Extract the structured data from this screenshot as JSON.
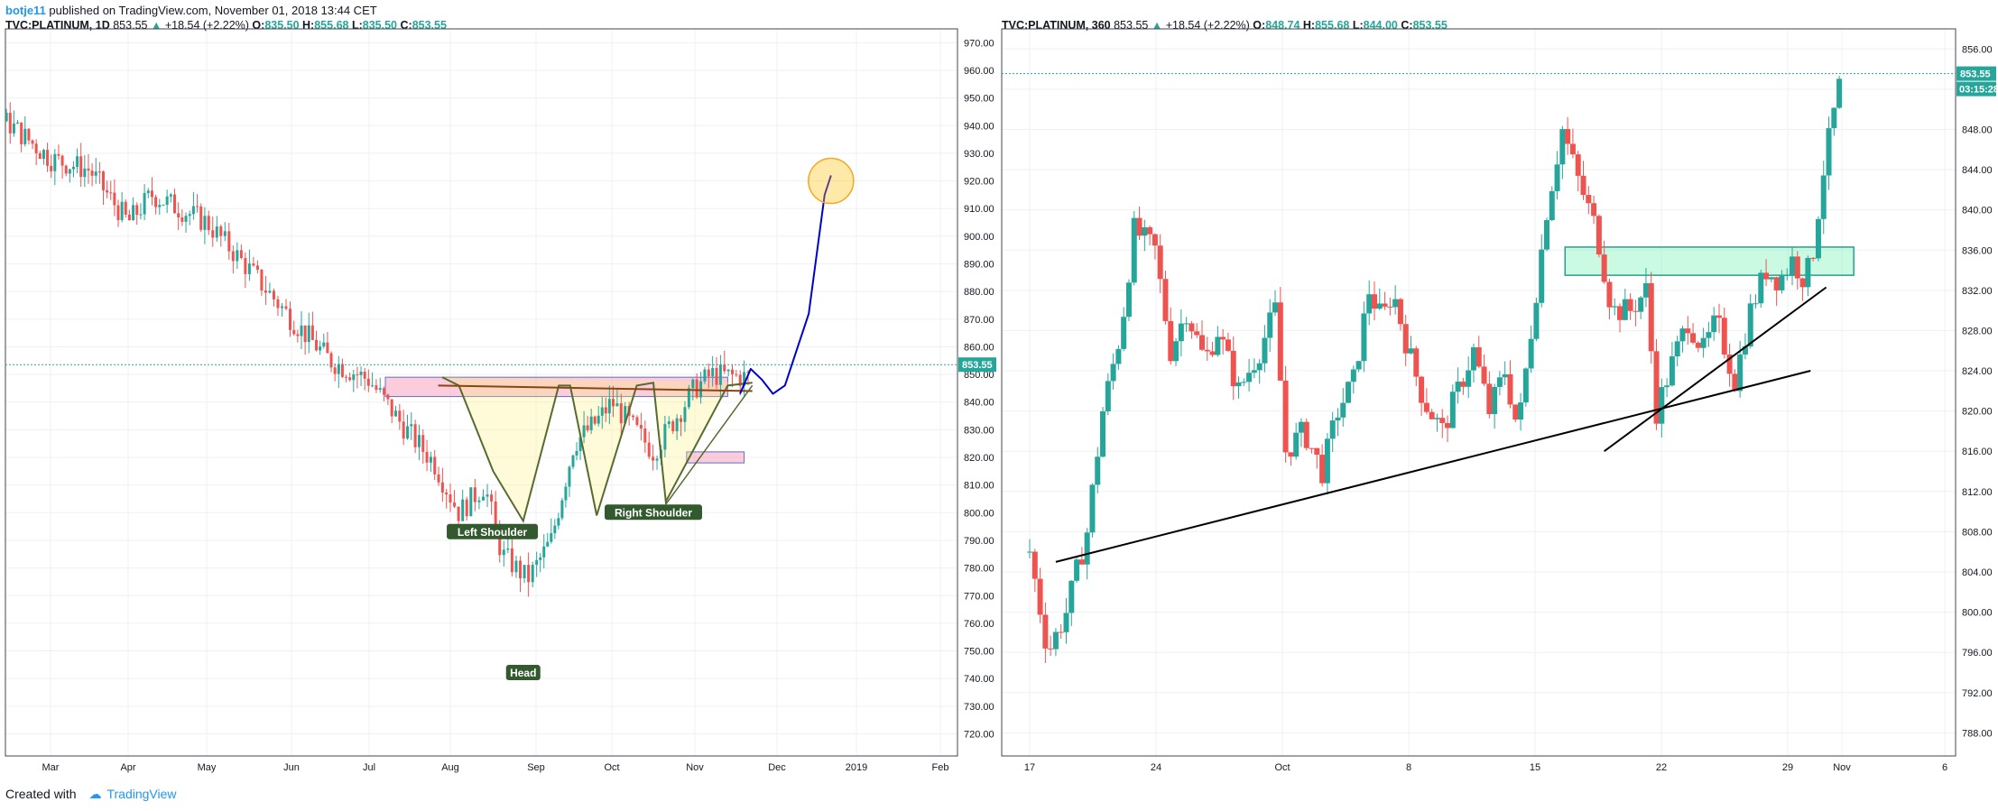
{
  "header": {
    "user": "botje11",
    "published_text": "published on TradingView.com, November 01, 2018 13:44 CET"
  },
  "footer": {
    "created_with": "Created with",
    "brand": "TradingView"
  },
  "colors": {
    "up": "#26a69a",
    "down": "#ef5350",
    "projection": "#0000cc",
    "grid": "#eef0f3"
  },
  "chart_data": [
    {
      "type": "candlestick",
      "symbol": "TVC:PLATINUM, 1D",
      "ohlc_legend": {
        "last": "853.55",
        "change": "+18.54 (+2.22%)",
        "O": "835.50",
        "H": "855.68",
        "L": "835.50",
        "C": "853.55"
      },
      "xlabels": [
        "Mar",
        "Apr",
        "May",
        "Jun",
        "Jul",
        "Aug",
        "Sep",
        "Oct",
        "Nov",
        "Dec",
        "2019",
        "Feb"
      ],
      "ylim": [
        712,
        975
      ],
      "yticks": [
        720,
        730,
        740,
        750,
        760,
        770,
        780,
        790,
        800,
        810,
        820,
        830,
        840,
        850,
        860,
        870,
        880,
        890,
        900,
        910,
        920,
        930,
        940,
        950,
        960,
        970
      ],
      "last_price_label": "853.55",
      "price_path": [
        [
          -0.3,
          975
        ],
        [
          0,
          970
        ],
        [
          0.3,
          955
        ],
        [
          1,
          948
        ],
        [
          1.5,
          940
        ],
        [
          2,
          928
        ],
        [
          2.5,
          924
        ],
        [
          3,
          905
        ],
        [
          3.3,
          915
        ],
        [
          4,
          905
        ],
        [
          4.5,
          888
        ],
        [
          5,
          870
        ],
        [
          5.5,
          855
        ],
        [
          6,
          848
        ],
        [
          6.4,
          832
        ],
        [
          6.8,
          818
        ],
        [
          7.1,
          800
        ],
        [
          7.4,
          810
        ],
        [
          7.6,
          785
        ],
        [
          7.9,
          776
        ],
        [
          8.2,
          790
        ],
        [
          8.5,
          825
        ],
        [
          8.8,
          833
        ],
        [
          9,
          840
        ],
        [
          9.5,
          822
        ],
        [
          10,
          845
        ],
        [
          10.2,
          850
        ],
        [
          10.6,
          849
        ]
      ],
      "annotations": {
        "labels": [
          "Left Shoulder",
          "Head",
          "Right Shoulder"
        ],
        "shoulder_pattern": [
          [
            6.9,
            849
          ],
          [
            7.1,
            846
          ],
          [
            7.5,
            815
          ],
          [
            7.85,
            797
          ],
          [
            8.3,
            846
          ],
          [
            8.45,
            846
          ],
          [
            8.8,
            799
          ],
          [
            9.3,
            846
          ],
          [
            9.5,
            847
          ],
          [
            9.65,
            804
          ],
          [
            10.4,
            846
          ],
          [
            10.7,
            847
          ]
        ],
        "head_label_at": [
          7.85,
          742
        ],
        "ls_label_at": [
          7.49,
          793
        ],
        "rs_label_at": [
          9.5,
          800
        ],
        "neckline": [
          [
            6.85,
            846
          ],
          [
            10.7,
            844
          ]
        ],
        "support_line": [
          [
            9.65,
            803
          ],
          [
            10.7,
            846
          ]
        ],
        "resistance_zone": [
          [
            6.2,
            842
          ],
          [
            10.4,
            849
          ]
        ],
        "support_zone": [
          [
            9.9,
            818
          ],
          [
            10.6,
            822
          ]
        ],
        "projection_path": [
          [
            10.55,
            843
          ],
          [
            10.68,
            852
          ],
          [
            10.82,
            848
          ],
          [
            10.95,
            843
          ],
          [
            11.1,
            846
          ],
          [
            11.4,
            872
          ],
          [
            11.6,
            915
          ],
          [
            11.68,
            922
          ]
        ],
        "target_circle": [
          11.68,
          920
        ]
      }
    },
    {
      "type": "candlestick",
      "symbol": "TVC:PLATINUM, 360",
      "ohlc_legend": {
        "last": "853.55",
        "change": "+18.54 (+2.22%)",
        "O": "848.74",
        "H": "855.68",
        "L": "844.00",
        "C": "853.55"
      },
      "xlabels": [
        "17",
        "24",
        "Oct",
        "8",
        "15",
        "22",
        "29",
        "Nov",
        "6"
      ],
      "ylim": [
        785.7,
        858
      ],
      "yticks": [
        788,
        792,
        796,
        800,
        804,
        808,
        812,
        816,
        820,
        824,
        828,
        832,
        836,
        840,
        844,
        848,
        852,
        856
      ],
      "last_price_label": "853.55",
      "countdown_label": "03:15:28",
      "price_path": [
        [
          17,
          806
        ],
        [
          17.7,
          796
        ],
        [
          18.4,
          800
        ],
        [
          19.2,
          808
        ],
        [
          19.8,
          820
        ],
        [
          20.5,
          828
        ],
        [
          21,
          838
        ],
        [
          21.8,
          836
        ],
        [
          22.4,
          826
        ],
        [
          23,
          830
        ],
        [
          23.7,
          825
        ],
        [
          24.2,
          828
        ],
        [
          25,
          822
        ],
        [
          25.8,
          826
        ],
        [
          26.4,
          830
        ],
        [
          26.8,
          816
        ],
        [
          27.5,
          818
        ],
        [
          28.2,
          814
        ],
        [
          28.8,
          820
        ],
        [
          29.4,
          823
        ],
        [
          30,
          832
        ],
        [
          30.5,
          829
        ],
        [
          30.9,
          832
        ],
        [
          31.5,
          826
        ],
        [
          32.1,
          821
        ],
        [
          32.8,
          818
        ],
        [
          33.4,
          822
        ],
        [
          34,
          826
        ],
        [
          34.6,
          820
        ],
        [
          35.2,
          824
        ],
        [
          35.7,
          818
        ],
        [
          36.2,
          828
        ],
        [
          36.8,
          840
        ],
        [
          37.4,
          848
        ],
        [
          38,
          843
        ],
        [
          38.7,
          838
        ],
        [
          39.3,
          830
        ],
        [
          40,
          830
        ],
        [
          40.6,
          832
        ],
        [
          41,
          820
        ],
        [
          41.5,
          824
        ],
        [
          42.2,
          829
        ],
        [
          42.8,
          826
        ],
        [
          43.3,
          829
        ],
        [
          44,
          823
        ],
        [
          44.6,
          830
        ],
        [
          45.2,
          834
        ],
        [
          45.7,
          833
        ],
        [
          46.2,
          835
        ],
        [
          46.7,
          833
        ],
        [
          47,
          836
        ],
        [
          47.4,
          844
        ],
        [
          47.75,
          849
        ],
        [
          48.1,
          853.5
        ]
      ],
      "annotations": {
        "long_trendline": [
          [
            18,
            805
          ],
          [
            46.9,
            824
          ]
        ],
        "short_trendline": [
          [
            39,
            816
          ],
          [
            47.5,
            832.3
          ]
        ],
        "resistance_box": [
          [
            37.5,
            833.5
          ],
          [
            48.5,
            836.3
          ]
        ]
      }
    }
  ]
}
